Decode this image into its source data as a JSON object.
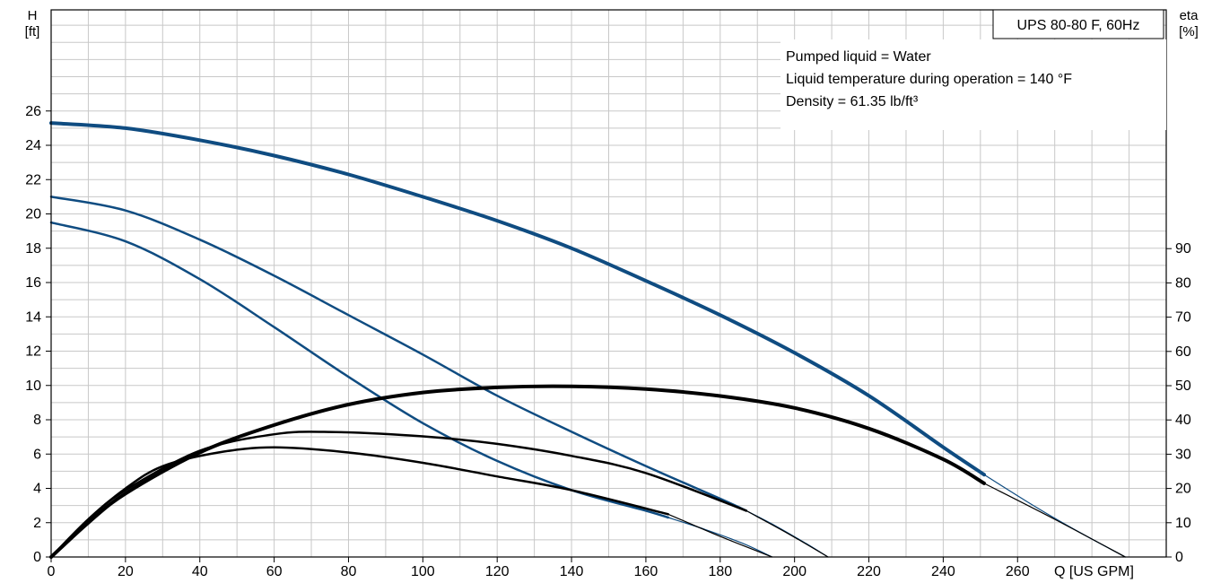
{
  "chart_data": {
    "type": "line",
    "title": "UPS 80-80 F, 60Hz",
    "info": [
      "Pumped liquid = Water",
      "Liquid temperature during operation = 140 °F",
      "Density = 61.35 lb/ft³"
    ],
    "y_left_label": [
      "H",
      "[ft]"
    ],
    "y_right_label": [
      "eta",
      "[%]"
    ],
    "x_label": "Q [US GPM]",
    "xlim": [
      0,
      300
    ],
    "ylim_left": [
      0,
      26
    ],
    "ylim_right": [
      0,
      90
    ],
    "x_ticks": [
      "0",
      "20",
      "40",
      "60",
      "80",
      "100",
      "120",
      "140",
      "160",
      "180",
      "200",
      "220",
      "240",
      "260"
    ],
    "y_left_ticks": [
      "0",
      "2",
      "4",
      "6",
      "8",
      "10",
      "12",
      "14",
      "16",
      "18",
      "20",
      "22",
      "24",
      "26"
    ],
    "y_right_ticks": [
      "0",
      "10",
      "20",
      "30",
      "40",
      "50",
      "60",
      "70",
      "80",
      "90"
    ],
    "grid": true,
    "colors": {
      "head": "#0f4c81",
      "efficiency": "#000000",
      "grid": "#c8c8c8"
    },
    "series": [
      {
        "speed": "high",
        "kind": "head",
        "axis": "left",
        "x": [
          0,
          20,
          40,
          60,
          80,
          100,
          120,
          140,
          160,
          180,
          200,
          220,
          240,
          251
        ],
        "y": [
          25.3,
          25.0,
          24.3,
          23.4,
          22.3,
          21.0,
          19.6,
          18.0,
          16.1,
          14.1,
          11.9,
          9.4,
          6.4,
          4.8
        ]
      },
      {
        "speed": "high",
        "kind": "head-extension",
        "axis": "left",
        "x": [
          251,
          265,
          277,
          289
        ],
        "y": [
          4.8,
          2.9,
          1.4,
          0
        ]
      },
      {
        "speed": "medium",
        "kind": "head",
        "axis": "left",
        "x": [
          0,
          20,
          40,
          60,
          80,
          100,
          120,
          140,
          160,
          180,
          187
        ],
        "y": [
          21.0,
          20.2,
          18.5,
          16.4,
          14.1,
          11.8,
          9.4,
          7.3,
          5.3,
          3.4,
          2.7
        ]
      },
      {
        "speed": "medium",
        "kind": "head-extension",
        "axis": "left",
        "x": [
          187,
          195,
          203,
          209
        ],
        "y": [
          2.7,
          1.8,
          0.8,
          0
        ]
      },
      {
        "speed": "low",
        "kind": "head",
        "axis": "left",
        "x": [
          0,
          20,
          40,
          60,
          80,
          100,
          120,
          140,
          160,
          166
        ],
        "y": [
          19.5,
          18.4,
          16.2,
          13.4,
          10.5,
          7.8,
          5.6,
          3.9,
          2.7,
          2.3
        ]
      },
      {
        "speed": "low",
        "kind": "head-extension",
        "axis": "left",
        "x": [
          166,
          176,
          186,
          194
        ],
        "y": [
          2.3,
          1.6,
          0.8,
          0
        ]
      },
      {
        "speed": "high",
        "kind": "efficiency",
        "axis": "right",
        "x": [
          0,
          10,
          20,
          40,
          60,
          80,
          100,
          120,
          140,
          160,
          180,
          200,
          220,
          240,
          251
        ],
        "y": [
          0,
          10,
          18.5,
          30.5,
          38.5,
          44.5,
          48,
          49.5,
          49.8,
          49,
          47,
          43.5,
          37.5,
          28.5,
          21.5
        ]
      },
      {
        "speed": "high",
        "kind": "efficiency-extension",
        "axis": "right",
        "x": [
          251,
          270,
          289
        ],
        "y": [
          21.5,
          11,
          0
        ]
      },
      {
        "speed": "medium",
        "kind": "efficiency",
        "axis": "right",
        "x": [
          0,
          10,
          20,
          40,
          60,
          75,
          100,
          120,
          140,
          160,
          187
        ],
        "y": [
          0,
          11,
          19.5,
          31,
          35.8,
          36.5,
          35.2,
          33,
          29.5,
          24.5,
          13.5
        ]
      },
      {
        "speed": "medium",
        "kind": "efficiency-extension",
        "axis": "right",
        "x": [
          187,
          198,
          209
        ],
        "y": [
          13.5,
          7,
          0
        ]
      },
      {
        "speed": "low",
        "kind": "efficiency",
        "axis": "right",
        "x": [
          0,
          10,
          20,
          30,
          45,
          60,
          80,
          100,
          120,
          140,
          166
        ],
        "y": [
          0,
          11,
          20,
          26.5,
          30.5,
          32,
          30.5,
          27.5,
          23.5,
          19.5,
          12.5
        ]
      },
      {
        "speed": "low",
        "kind": "efficiency-extension",
        "axis": "right",
        "x": [
          166,
          180,
          194
        ],
        "y": [
          12.5,
          6,
          0
        ]
      }
    ]
  }
}
